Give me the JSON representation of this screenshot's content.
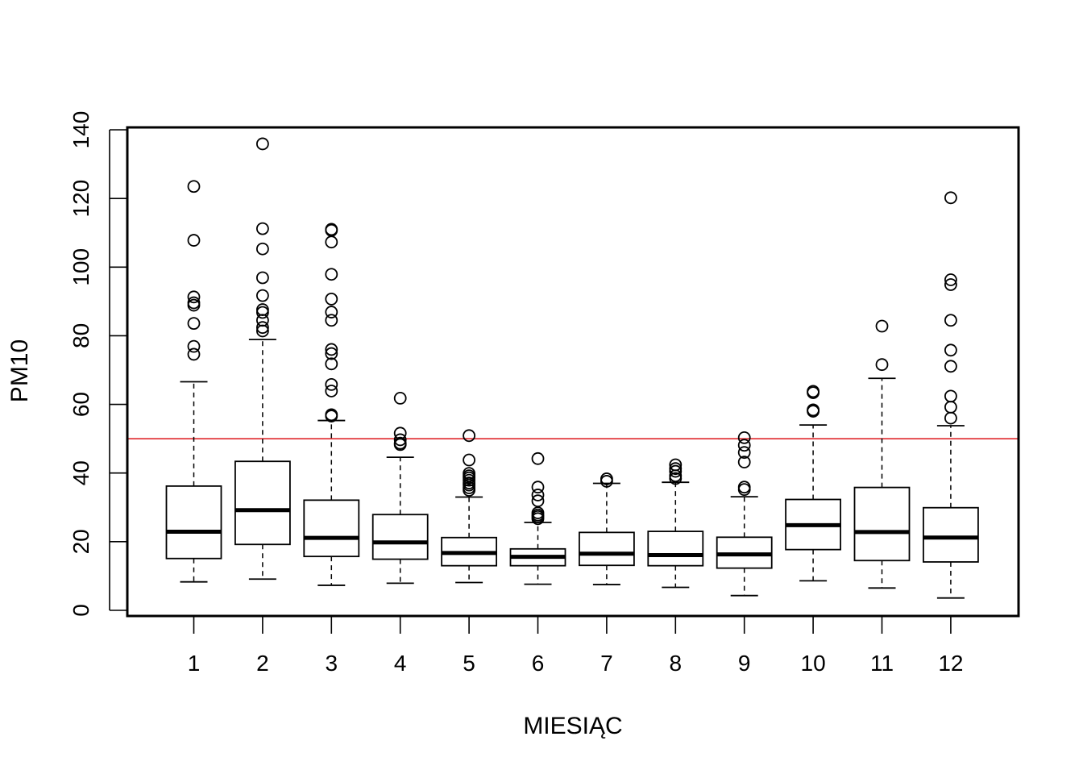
{
  "chart_data": {
    "type": "boxplot",
    "title": "",
    "xlabel": "MIESIĄC",
    "ylabel": "PM10",
    "ylim": [
      0,
      140
    ],
    "yticks": [
      0,
      20,
      40,
      60,
      80,
      100,
      120,
      140
    ],
    "grid": false,
    "legend": "none",
    "reference_line": {
      "y": 50,
      "color": "#e0262b"
    },
    "categories": [
      "1",
      "2",
      "3",
      "4",
      "5",
      "6",
      "7",
      "8",
      "9",
      "10",
      "11",
      "12"
    ],
    "boxes": [
      {
        "label": "1",
        "whisker_low": 8.3,
        "q1": 15.1,
        "median": 22.9,
        "q3": 36.2,
        "whisker_high": 66.6,
        "outliers": [
          74.6,
          76.9,
          83.6,
          88.9,
          89.6,
          91.3,
          107.8,
          123.5
        ]
      },
      {
        "label": "2",
        "whisker_low": 9.1,
        "q1": 19.2,
        "median": 29.2,
        "q3": 43.4,
        "whisker_high": 78.9,
        "outliers": [
          81.4,
          82.4,
          84.5,
          86.8,
          87.6,
          91.7,
          96.9,
          105.3,
          111.2,
          135.9
        ]
      },
      {
        "label": "3",
        "whisker_low": 7.3,
        "q1": 15.7,
        "median": 21.1,
        "q3": 32.1,
        "whisker_high": 55.3,
        "outliers": [
          56.6,
          57.0,
          63.9,
          65.8,
          71.8,
          74.8,
          76.0,
          84.5,
          86.9,
          90.7,
          97.9,
          107.3,
          110.7,
          111.0
        ]
      },
      {
        "label": "4",
        "whisker_low": 7.9,
        "q1": 14.9,
        "median": 19.8,
        "q3": 27.9,
        "whisker_high": 44.6,
        "outliers": [
          48.3,
          48.7,
          49.7,
          51.6,
          61.8
        ]
      },
      {
        "label": "5",
        "whisker_low": 8.1,
        "q1": 13.0,
        "median": 16.7,
        "q3": 21.2,
        "whisker_high": 33.0,
        "outliers": [
          35.0,
          35.7,
          36.5,
          37.1,
          37.9,
          38.6,
          39.2,
          39.9,
          43.8,
          50.9
        ]
      },
      {
        "label": "6",
        "whisker_low": 7.6,
        "q1": 13.0,
        "median": 15.6,
        "q3": 17.9,
        "whisker_high": 25.6,
        "outliers": [
          26.7,
          27.3,
          27.8,
          28.4,
          31.9,
          33.6,
          35.9,
          44.2
        ]
      },
      {
        "label": "7",
        "whisker_low": 7.5,
        "q1": 13.1,
        "median": 16.5,
        "q3": 22.7,
        "whisker_high": 37.0,
        "outliers": [
          37.6,
          38.3
        ]
      },
      {
        "label": "8",
        "whisker_low": 6.7,
        "q1": 13.0,
        "median": 16.1,
        "q3": 23.0,
        "whisker_high": 37.3,
        "outliers": [
          38.4,
          39.2,
          40.5,
          41.3,
          42.4
        ]
      },
      {
        "label": "9",
        "whisker_low": 4.3,
        "q1": 12.3,
        "median": 16.3,
        "q3": 21.3,
        "whisker_high": 33.1,
        "outliers": [
          35.2,
          35.9,
          43.2,
          46.0,
          48.1,
          50.3
        ]
      },
      {
        "label": "10",
        "whisker_low": 8.6,
        "q1": 17.7,
        "median": 24.8,
        "q3": 32.3,
        "whisker_high": 54.0,
        "outliers": [
          58.0,
          58.4,
          63.4,
          63.8
        ]
      },
      {
        "label": "11",
        "whisker_low": 6.5,
        "q1": 14.5,
        "median": 22.8,
        "q3": 35.8,
        "whisker_high": 67.6,
        "outliers": [
          71.6,
          82.8
        ]
      },
      {
        "label": "12",
        "whisker_low": 3.6,
        "q1": 14.1,
        "median": 21.2,
        "q3": 29.9,
        "whisker_high": 53.8,
        "outliers": [
          56.0,
          59.2,
          62.4,
          71.1,
          75.8,
          84.5,
          94.9,
          96.3,
          120.2
        ]
      }
    ]
  }
}
